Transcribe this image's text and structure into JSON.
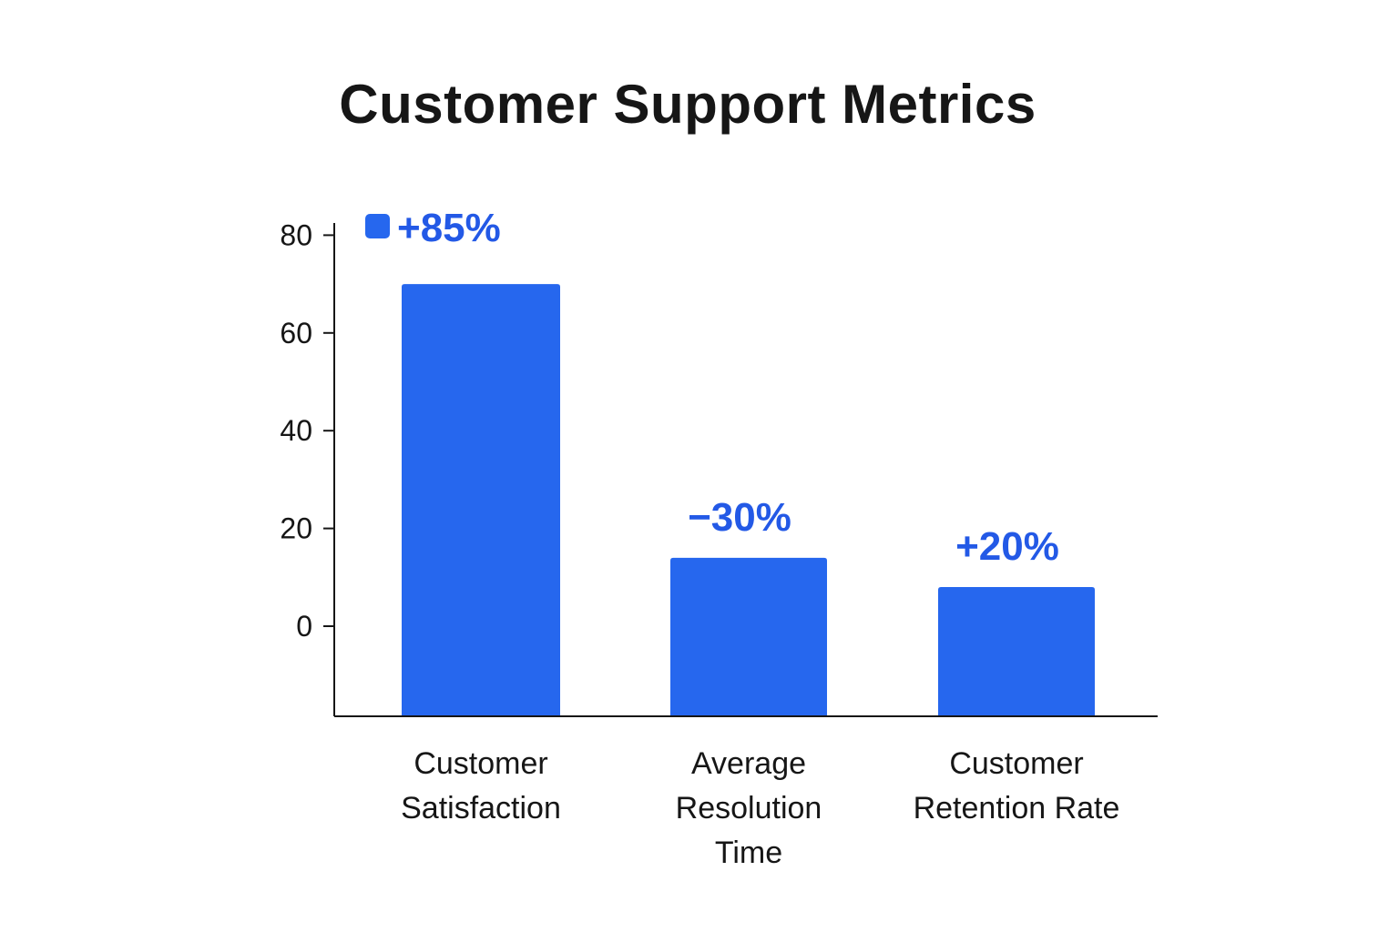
{
  "chart_data": {
    "type": "bar",
    "title": "Customer Support Metrics",
    "xlabel": "",
    "ylabel": "",
    "categories": [
      "Customer Satisfaction",
      "Average Resolution Time",
      "Customer Retention Rate"
    ],
    "category_lines": [
      [
        "Customer",
        "Satisfaction"
      ],
      [
        "Average",
        "Resolution",
        "Time"
      ],
      [
        "Customer",
        "Retention Rate"
      ]
    ],
    "values": [
      70,
      14,
      8
    ],
    "data_labels": [
      "+85%",
      "−30%",
      "+20%"
    ],
    "yticks": [
      0,
      20,
      40,
      60,
      80
    ],
    "ylim": [
      -18,
      80
    ],
    "grid": false,
    "legend_marker": true,
    "colors": {
      "bar": "#2667EE",
      "label": "#2359E6",
      "axis": "#161616"
    }
  }
}
